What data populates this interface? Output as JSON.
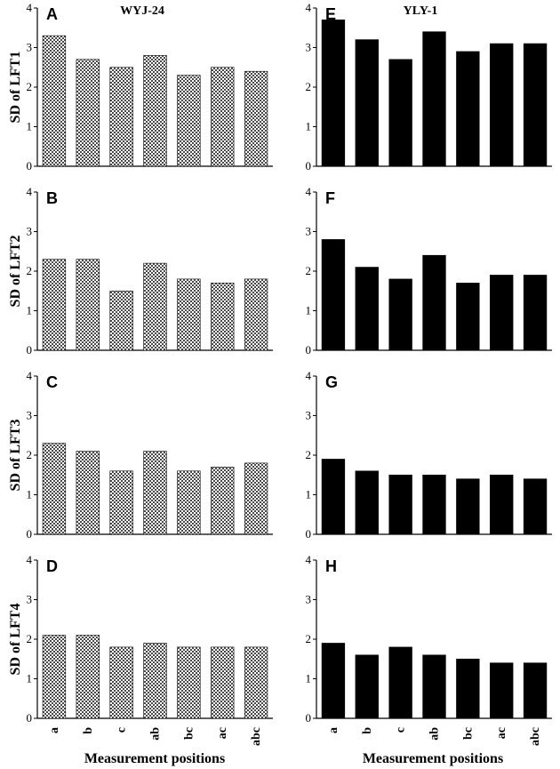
{
  "columns": [
    {
      "title": "WYJ-24",
      "pattern": "hatched"
    },
    {
      "title": "YLY-1",
      "pattern": "solid"
    }
  ],
  "colors": {
    "solid_bar": "#000000",
    "hatch_fg": "#4a4a4a",
    "hatch_bg": "#ffffff",
    "axis": "#000000"
  },
  "chart_data": [
    {
      "type": "bar",
      "panel": "A",
      "column": "WYJ-24",
      "title": "WYJ-24",
      "ylabel": "SD of LFT1",
      "xlabel": "Measurement positions",
      "categories": [
        "a",
        "b",
        "c",
        "ab",
        "bc",
        "ac",
        "abc"
      ],
      "values": [
        3.3,
        2.7,
        2.5,
        2.8,
        2.3,
        2.5,
        2.4
      ],
      "ylim": [
        0,
        4
      ],
      "yticks": [
        "0",
        "1",
        "2",
        "3",
        "4"
      ],
      "grid": false
    },
    {
      "type": "bar",
      "panel": "E",
      "column": "YLY-1",
      "title": "YLY-1",
      "ylabel": "",
      "xlabel": "Measurement positions",
      "categories": [
        "a",
        "b",
        "c",
        "ab",
        "bc",
        "ac",
        "abc"
      ],
      "values": [
        3.7,
        3.2,
        2.7,
        3.4,
        2.9,
        3.1,
        3.1
      ],
      "ylim": [
        0,
        4
      ],
      "yticks": [
        "0",
        "1",
        "2",
        "3",
        "4"
      ],
      "grid": false
    },
    {
      "type": "bar",
      "panel": "B",
      "column": "WYJ-24",
      "title": "",
      "ylabel": "SD of LFT2",
      "xlabel": "Measurement positions",
      "categories": [
        "a",
        "b",
        "c",
        "ab",
        "bc",
        "ac",
        "abc"
      ],
      "values": [
        2.3,
        2.3,
        1.5,
        2.2,
        1.8,
        1.7,
        1.8
      ],
      "ylim": [
        0,
        4
      ],
      "yticks": [
        "0",
        "1",
        "2",
        "3",
        "4"
      ],
      "grid": false
    },
    {
      "type": "bar",
      "panel": "F",
      "column": "YLY-1",
      "title": "",
      "ylabel": "",
      "xlabel": "Measurement positions",
      "categories": [
        "a",
        "b",
        "c",
        "ab",
        "bc",
        "ac",
        "abc"
      ],
      "values": [
        2.8,
        2.1,
        1.8,
        2.4,
        1.7,
        1.9,
        1.9
      ],
      "ylim": [
        0,
        4
      ],
      "yticks": [
        "0",
        "1",
        "2",
        "3",
        "4"
      ],
      "grid": false
    },
    {
      "type": "bar",
      "panel": "C",
      "column": "WYJ-24",
      "title": "",
      "ylabel": "SD of LFT3",
      "xlabel": "Measurement positions",
      "categories": [
        "a",
        "b",
        "c",
        "ab",
        "bc",
        "ac",
        "abc"
      ],
      "values": [
        2.3,
        2.1,
        1.6,
        2.1,
        1.6,
        1.7,
        1.8
      ],
      "ylim": [
        0,
        4
      ],
      "yticks": [
        "0",
        "1",
        "2",
        "3",
        "4"
      ],
      "grid": false
    },
    {
      "type": "bar",
      "panel": "G",
      "column": "YLY-1",
      "title": "",
      "ylabel": "",
      "xlabel": "Measurement positions",
      "categories": [
        "a",
        "b",
        "c",
        "ab",
        "bc",
        "ac",
        "abc"
      ],
      "values": [
        1.9,
        1.6,
        1.5,
        1.5,
        1.4,
        1.5,
        1.4
      ],
      "ylim": [
        0,
        4
      ],
      "yticks": [
        "0",
        "1",
        "2",
        "3",
        "4"
      ],
      "grid": false
    },
    {
      "type": "bar",
      "panel": "D",
      "column": "WYJ-24",
      "title": "",
      "ylabel": "SD of LFT4",
      "xlabel": "Measurement positions",
      "categories": [
        "a",
        "b",
        "c",
        "ab",
        "bc",
        "ac",
        "abc"
      ],
      "values": [
        2.1,
        2.1,
        1.8,
        1.9,
        1.8,
        1.8,
        1.8
      ],
      "ylim": [
        0,
        4
      ],
      "yticks": [
        "0",
        "1",
        "2",
        "3",
        "4"
      ],
      "grid": false
    },
    {
      "type": "bar",
      "panel": "H",
      "column": "YLY-1",
      "title": "",
      "ylabel": "",
      "xlabel": "Measurement positions",
      "categories": [
        "a",
        "b",
        "c",
        "ab",
        "bc",
        "ac",
        "abc"
      ],
      "values": [
        1.9,
        1.6,
        1.8,
        1.6,
        1.5,
        1.4,
        1.4
      ],
      "ylim": [
        0,
        4
      ],
      "yticks": [
        "0",
        "1",
        "2",
        "3",
        "4"
      ],
      "grid": false
    }
  ]
}
